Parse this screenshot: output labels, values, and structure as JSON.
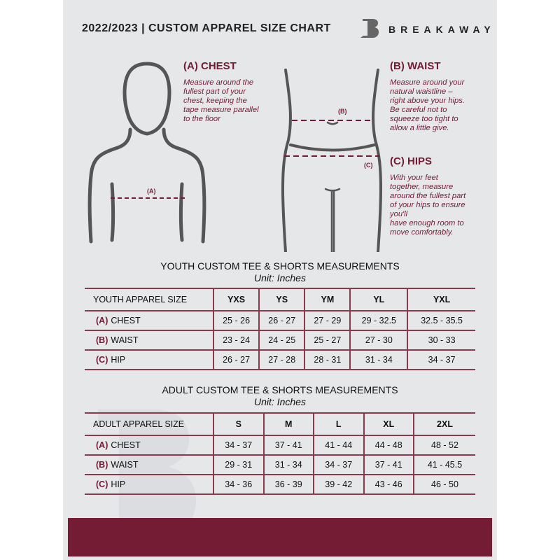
{
  "header": {
    "title": "2022/2023  |  CUSTOM APPAREL SIZE CHART",
    "brand": "BREAKAWAY"
  },
  "chest": {
    "heading": "(A) CHEST",
    "lines": [
      "Measure around the",
      "fullest part of your",
      "chest, keeping the",
      "tape measure parallel",
      "to the floor"
    ],
    "marker": "(A)"
  },
  "waist": {
    "heading": "(B) WAIST",
    "lines": [
      "Measure around your",
      "natural waistline –",
      "right above your hips.",
      "Be careful not to",
      "squeeze too tight to",
      "allow a little give."
    ],
    "marker": "(B)"
  },
  "hips": {
    "heading": "(C) HIPS",
    "lines": [
      "With your feet",
      "together, measure",
      "around the fullest part",
      "of your hips to ensure",
      "you'll",
      "have enough room to",
      "move comfortably."
    ],
    "marker": "(C)"
  },
  "youth": {
    "title": "YOUTH CUSTOM TEE & SHORTS MEASUREMENTS",
    "unit": "Unit: Inches",
    "size_label": "YOUTH APPAREL SIZE",
    "sizes": [
      "YXS",
      "YS",
      "YM",
      "YL",
      "YXL"
    ],
    "rows": [
      {
        "letter": "(A)",
        "name": "CHEST",
        "values": [
          "25 - 26",
          "26 - 27",
          "27 - 29",
          "29 - 32.5",
          "32.5 - 35.5"
        ]
      },
      {
        "letter": "(B)",
        "name": "WAIST",
        "values": [
          "23 - 24",
          "24 - 25",
          "25 - 27",
          "27 - 30",
          "30 - 33"
        ]
      },
      {
        "letter": "(C)",
        "name": "HIP",
        "values": [
          "26 - 27",
          "27 - 28",
          "28 - 31",
          "31 - 34",
          "34 - 37"
        ]
      }
    ]
  },
  "adult": {
    "title": "ADULT CUSTOM TEE & SHORTS MEASUREMENTS",
    "unit": "Unit: Inches",
    "size_label": "ADULT APPAREL SIZE",
    "sizes": [
      "S",
      "M",
      "L",
      "XL",
      "2XL"
    ],
    "rows": [
      {
        "letter": "(A)",
        "name": "CHEST",
        "values": [
          "34 - 37",
          "37 - 41",
          "41 - 44",
          "44 - 48",
          "48 - 52"
        ]
      },
      {
        "letter": "(B)",
        "name": "WAIST",
        "values": [
          "29 - 31",
          "31 - 34",
          "34 - 37",
          "37 - 41",
          "41 - 45.5"
        ]
      },
      {
        "letter": "(C)",
        "name": "HIP",
        "values": [
          "34 - 36",
          "36 - 39",
          "39 - 42",
          "43 - 46",
          "46 - 50"
        ]
      }
    ]
  },
  "colors": {
    "accent": "#741b34",
    "background": "#e6e7e9"
  }
}
